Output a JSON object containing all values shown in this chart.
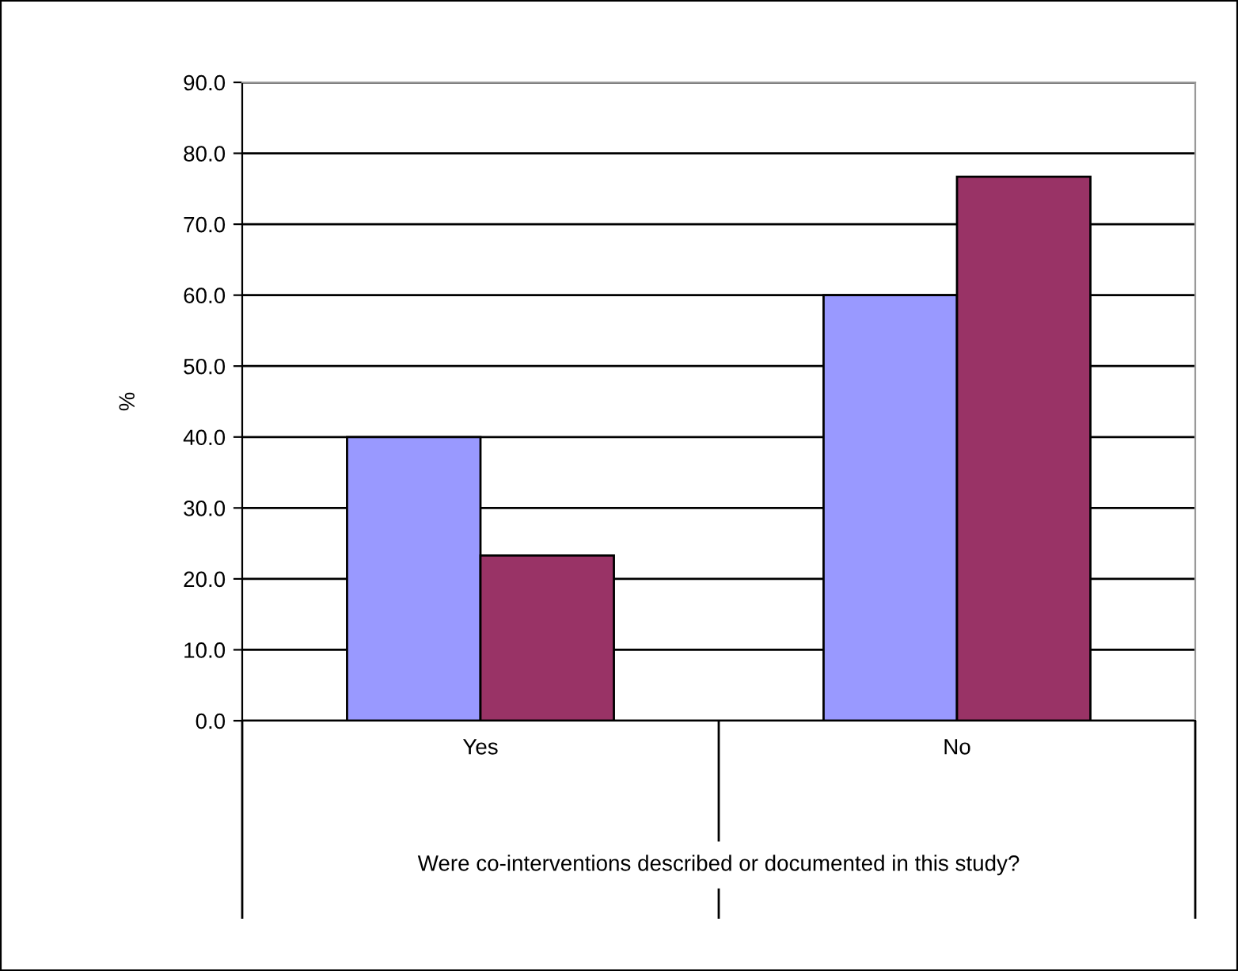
{
  "chart_data": {
    "type": "bar",
    "ylabel": "%",
    "xlabel": "Were co-interventions described or documented in this study?",
    "categories": [
      "Yes",
      "No"
    ],
    "series": [
      {
        "color": "#9999ff",
        "values": [
          40,
          60
        ]
      },
      {
        "color": "#993366",
        "values": [
          23.3,
          76.7
        ]
      }
    ],
    "ylim": [
      0,
      90
    ],
    "yticks": [
      {
        "value": 0,
        "label": "0.0"
      },
      {
        "value": 10,
        "label": "10.0"
      },
      {
        "value": 20,
        "label": "20.0"
      },
      {
        "value": 30,
        "label": "30.0"
      },
      {
        "value": 40,
        "label": "40.0"
      },
      {
        "value": 50,
        "label": "50.0"
      },
      {
        "value": 60,
        "label": "60.0"
      },
      {
        "value": 70,
        "label": "70.0"
      },
      {
        "value": 80,
        "label": "80.0"
      },
      {
        "value": 90,
        "label": "90.0"
      }
    ],
    "grid": "y",
    "legend": false
  }
}
